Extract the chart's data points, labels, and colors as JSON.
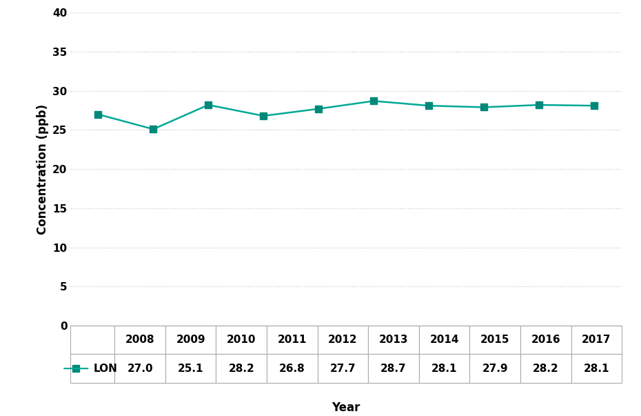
{
  "years": [
    2008,
    2009,
    2010,
    2011,
    2012,
    2013,
    2014,
    2015,
    2016,
    2017
  ],
  "values": [
    27.0,
    25.1,
    28.2,
    26.8,
    27.7,
    28.7,
    28.1,
    27.9,
    28.2,
    28.1
  ],
  "series_label": "LON",
  "line_color": "#00A896",
  "marker": "s",
  "marker_color": "#00897B",
  "ylabel": "Concentration (ppb)",
  "xlabel": "Year",
  "ylim": [
    0,
    40
  ],
  "yticks": [
    0,
    5,
    10,
    15,
    20,
    25,
    30,
    35,
    40
  ],
  "grid_color": "#CCCCCC",
  "table_border_color": "#AAAAAA",
  "background_color": "#FFFFFF",
  "figure_size": [
    9.3,
    6.03
  ],
  "dpi": 100
}
